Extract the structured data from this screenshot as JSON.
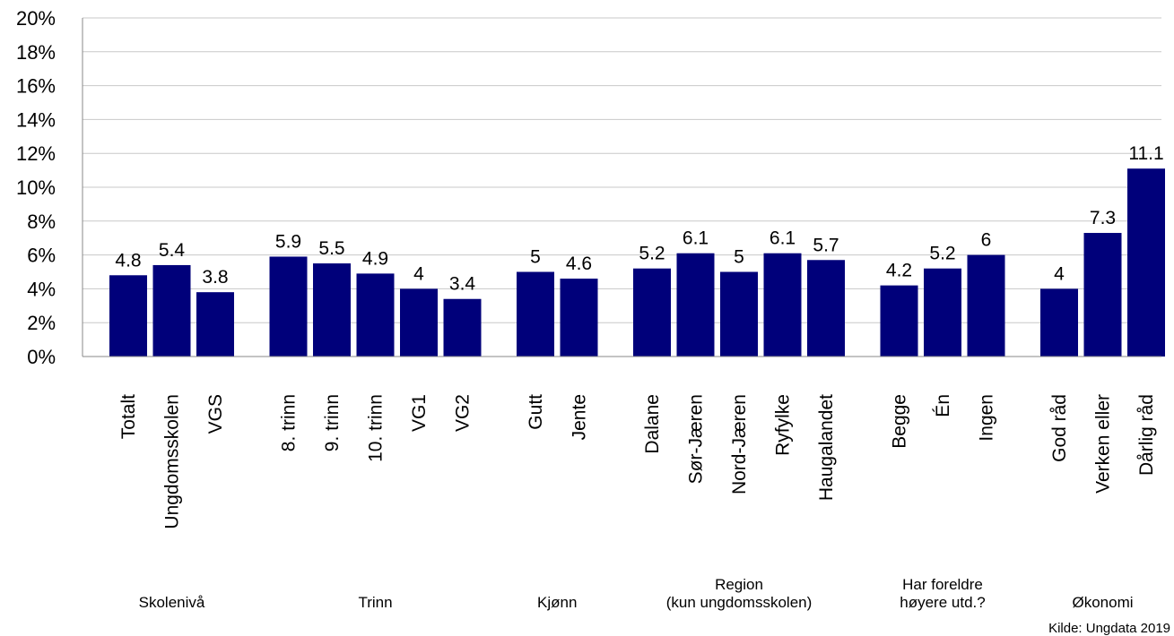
{
  "chart_data": {
    "type": "bar",
    "title": "",
    "xlabel": "",
    "ylabel": "",
    "ylim": [
      0,
      20
    ],
    "yticks": [
      "0%",
      "2%",
      "4%",
      "6%",
      "8%",
      "10%",
      "12%",
      "14%",
      "16%",
      "18%",
      "20%"
    ],
    "grid": true,
    "bar_color": "#00007A",
    "grid_color": "#C8C8C8",
    "categories": [
      "Totalt",
      "Ungdomsskolen",
      "VGS",
      "8. trinn",
      "9. trinn",
      "10. trinn",
      "VG1",
      "VG2",
      "Gutt",
      "Jente",
      "Dalane",
      "Sør-Jæren",
      "Nord-Jæren",
      "Ryfylke",
      "Haugalandet",
      "Begge",
      "Én",
      "Ingen",
      "God råd",
      "Verken eller",
      "Dårlig råd"
    ],
    "values": [
      4.8,
      5.4,
      3.8,
      5.9,
      5.5,
      4.9,
      4,
      3.4,
      5,
      4.6,
      5.2,
      6.1,
      5,
      6.1,
      5.7,
      4.2,
      5.2,
      6,
      4,
      7.3,
      11.1
    ],
    "data_labels": [
      "4.8",
      "5.4",
      "3.8",
      "5.9",
      "5.5",
      "4.9",
      "4",
      "3.4",
      "5",
      "4.6",
      "5.2",
      "6.1",
      "5",
      "6.1",
      "5.7",
      "4.2",
      "5.2",
      "6",
      "4",
      "7.3",
      "11.1"
    ],
    "groups": [
      {
        "label_lines": [
          "Skolenivå"
        ],
        "count": 3
      },
      {
        "label_lines": [
          "Trinn"
        ],
        "count": 5
      },
      {
        "label_lines": [
          "Kjønn"
        ],
        "count": 2
      },
      {
        "label_lines": [
          "Region",
          "(kun ungdomsskolen)"
        ],
        "count": 5
      },
      {
        "label_lines": [
          "Har foreldre",
          "høyere utd.?"
        ],
        "count": 3
      },
      {
        "label_lines": [
          "Økonomi"
        ],
        "count": 3
      }
    ]
  },
  "source": "Kilde: Ungdata 2019"
}
